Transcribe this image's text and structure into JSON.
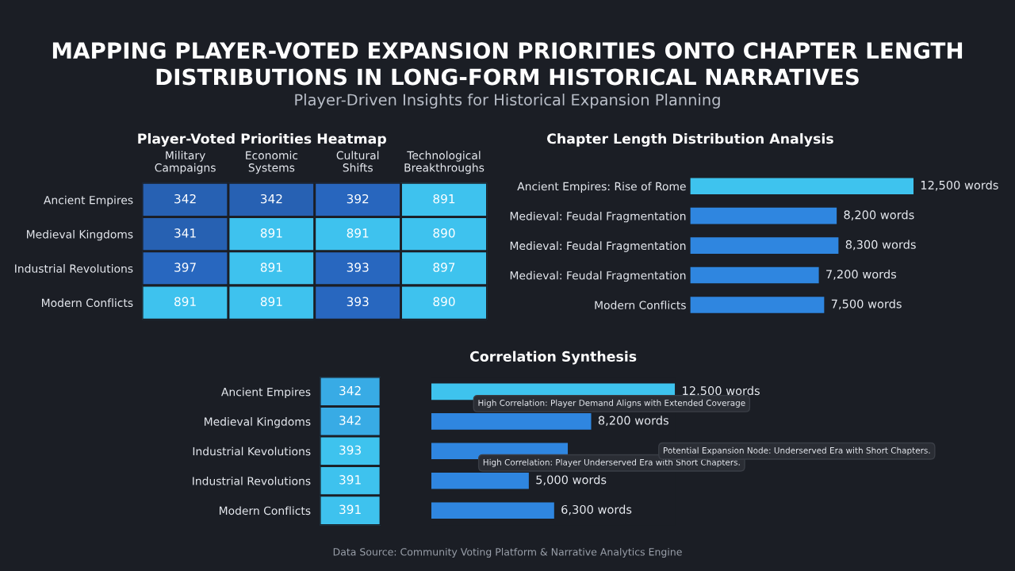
{
  "chart_data": [
    {
      "type": "heatmap",
      "title": "MAPPING PLAYER-VOTED EXPANSION PRIORITIES ONTO CHAPTER LENGTH\nDISTRIBUTIONS IN LONG-FORM HISTORICAL NARRATIVES",
      "subtitle": "Player-Driven Insights for Historical Expansion Planning",
      "annotations": [
        "Player-Voted Priorities Heatmap"
      ],
      "data_labels": true,
      "categories": [
        "Military\nCampaigns",
        "Economic\nSystems",
        "Cultural\nShifts",
        "Technological\nBreakthroughs"
      ],
      "y_categories": [
        "Ancient Empires",
        "Medieval Kingdoms",
        "Industrial Revolutions",
        "Modern Conflicts"
      ],
      "cells": [
        [
          342,
          342,
          392,
          891
        ],
        [
          341,
          891,
          891,
          890
        ],
        [
          397,
          891,
          393,
          897
        ],
        [
          891,
          891,
          393,
          890
        ]
      ]
    },
    {
      "type": "bar",
      "orientation": "horizontal",
      "title": "Chapter Length Distribution Analysis",
      "categories": [
        "Ancient Empires: Rise of Rome",
        "Medieval: Feudal Fragmentation",
        "Medieval: Feudal Fragmentation",
        "Medieval: Feudal Fragmentation",
        "Modern Conflicts"
      ],
      "values": [
        12500,
        8200,
        8300,
        7200,
        7500
      ],
      "value_labels": [
        "12,500 words",
        "8,200 words",
        "8,300 words",
        "7,200 words",
        "7,500 words"
      ],
      "colors": [
        "#3ec3ee",
        "#2f86e0",
        "#2f86e0",
        "#2f86e0",
        "#2f86e0"
      ],
      "xlim": [
        0,
        12500
      ],
      "tick_labels": "y"
    },
    {
      "type": "heatmap",
      "data_labels": true,
      "categories": [
        null
      ],
      "y_categories": [
        "Ancient Empires",
        "Medieval Kingdoms",
        "Industrial Kevolutions",
        "Industrial Revolutions",
        "Modern Conflicts"
      ],
      "cells": [
        [
          342
        ],
        [
          342
        ],
        [
          393
        ],
        [
          391
        ],
        [
          391
        ]
      ],
      "annotations": [
        "Data Source: Community Voting Platform & Narrative Analytics Engine"
      ]
    },
    {
      "type": "bar",
      "orientation": "horizontal",
      "title": "Correlation Synthesis",
      "categories": [
        null,
        null,
        null,
        null,
        null
      ],
      "values": [
        12500,
        8200,
        7000,
        5000,
        6300
      ],
      "value_labels": [
        "12,500 words",
        "8,200 words",
        null,
        "5,000 words",
        "6,300 words"
      ],
      "colors": [
        "#3ec3ee",
        "#2f86e0",
        "#2f86e0",
        "#2f86e0",
        "#2f86e0"
      ],
      "xlim": [
        0,
        12500
      ],
      "tick_labels": false,
      "annotations": [
        "High Correlation: Player Demand Aligns with Extended Coverage",
        "High Correlation: Player Underserved Era with Short Chapters.",
        "Potential Expansion Node: Underserved Era with Short Chapters."
      ]
    }
  ]
}
